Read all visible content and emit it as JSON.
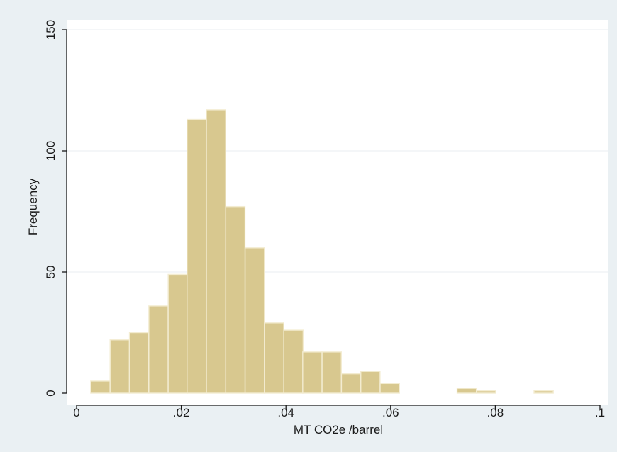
{
  "colors": {
    "outer_background": "#eaf0f3",
    "plot_background": "#ffffff",
    "bar_fill": "#d8c88f",
    "bar_stroke": "#f3ecd1",
    "gridline": "#e9eef1",
    "axis": "#1a1a1a"
  },
  "chart_data": {
    "type": "bar",
    "subtype": "histogram",
    "xlabel": "MT CO2e /barrel",
    "ylabel": "Frequency",
    "xlim": [
      0,
      0.1
    ],
    "ylim": [
      0,
      150
    ],
    "bin_width": 0.00368,
    "x_ticks": [
      {
        "value": 0,
        "label": "0"
      },
      {
        "value": 0.02,
        "label": ".02"
      },
      {
        "value": 0.04,
        "label": ".04"
      },
      {
        "value": 0.06,
        "label": ".06"
      },
      {
        "value": 0.08,
        "label": ".08"
      },
      {
        "value": 0.1,
        "label": ".1"
      }
    ],
    "y_ticks": [
      {
        "value": 0,
        "label": "0"
      },
      {
        "value": 50,
        "label": "50"
      },
      {
        "value": 100,
        "label": "100"
      },
      {
        "value": 150,
        "label": "150"
      }
    ],
    "gridlines": "horizontal",
    "bins": [
      {
        "x_start": 0.0027,
        "count": 5
      },
      {
        "x_start": 0.0064,
        "count": 22
      },
      {
        "x_start": 0.0101,
        "count": 25
      },
      {
        "x_start": 0.0138,
        "count": 36
      },
      {
        "x_start": 0.0175,
        "count": 49
      },
      {
        "x_start": 0.0211,
        "count": 113
      },
      {
        "x_start": 0.0248,
        "count": 117
      },
      {
        "x_start": 0.0285,
        "count": 77
      },
      {
        "x_start": 0.0322,
        "count": 60
      },
      {
        "x_start": 0.0359,
        "count": 29
      },
      {
        "x_start": 0.0396,
        "count": 26
      },
      {
        "x_start": 0.0432,
        "count": 17
      },
      {
        "x_start": 0.0469,
        "count": 17
      },
      {
        "x_start": 0.0506,
        "count": 8
      },
      {
        "x_start": 0.0543,
        "count": 9
      },
      {
        "x_start": 0.058,
        "count": 4
      },
      {
        "x_start": 0.0727,
        "count": 2
      },
      {
        "x_start": 0.0764,
        "count": 1
      },
      {
        "x_start": 0.0874,
        "count": 1
      }
    ]
  }
}
